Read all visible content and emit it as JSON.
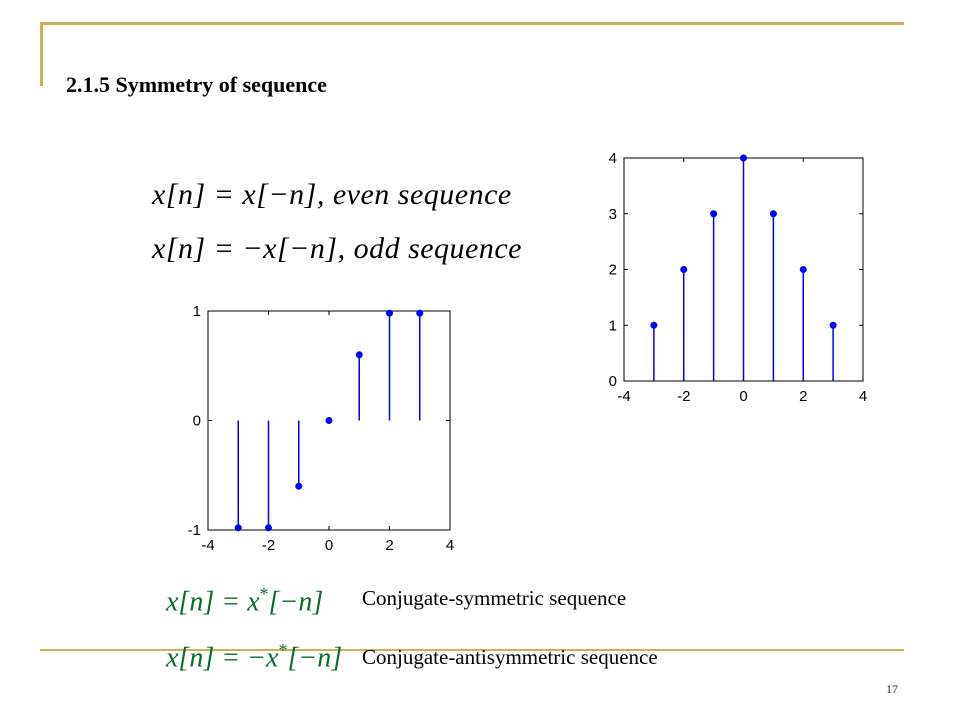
{
  "slide": {
    "title": "2.1.5 Symmetry of sequence",
    "page_number": "17",
    "equations": {
      "even": "x[n] = x[−n], even   sequence",
      "odd": "x[n] = −x[−n], odd   sequence",
      "conj_sym": "x[n] = x",
      "conj_sym_sup": "*",
      "conj_sym_tail": "[−n]",
      "conj_antisym": "x[n] = −x",
      "conj_antisym_sup": "*",
      "conj_antisym_tail": "[−n]"
    },
    "labels": {
      "conj_sym": "Conjugate-symmetric sequence",
      "conj_antisym": "Conjugate-antisymmetric sequence"
    },
    "colors": {
      "stem": "#0000ff",
      "accent_line": "#c9b25a",
      "equation_green": "#0b6b2a"
    }
  },
  "chart_data": [
    {
      "type": "scatter",
      "style": "stem",
      "x": [
        -3,
        -2,
        -1,
        0,
        1,
        2,
        3
      ],
      "y": [
        1,
        2,
        3,
        4,
        3,
        2,
        1
      ],
      "xlim": [
        -4,
        4
      ],
      "ylim": [
        0,
        4
      ],
      "xticks": [
        "-4",
        "-2",
        "0",
        "2",
        "4"
      ],
      "yticks": [
        "0",
        "1",
        "2",
        "3",
        "4"
      ],
      "grid": false
    },
    {
      "type": "scatter",
      "style": "stem",
      "x": [
        -3,
        -2,
        -1,
        0,
        1,
        2,
        3
      ],
      "y": [
        -0.98,
        -0.98,
        -0.6,
        0,
        0.6,
        0.98,
        0.98
      ],
      "xlim": [
        -4,
        4
      ],
      "ylim": [
        -1,
        1
      ],
      "xticks": [
        "-4",
        "-2",
        "0",
        "2",
        "4"
      ],
      "yticks": [
        "-1",
        "0",
        "1"
      ],
      "grid": false
    }
  ]
}
